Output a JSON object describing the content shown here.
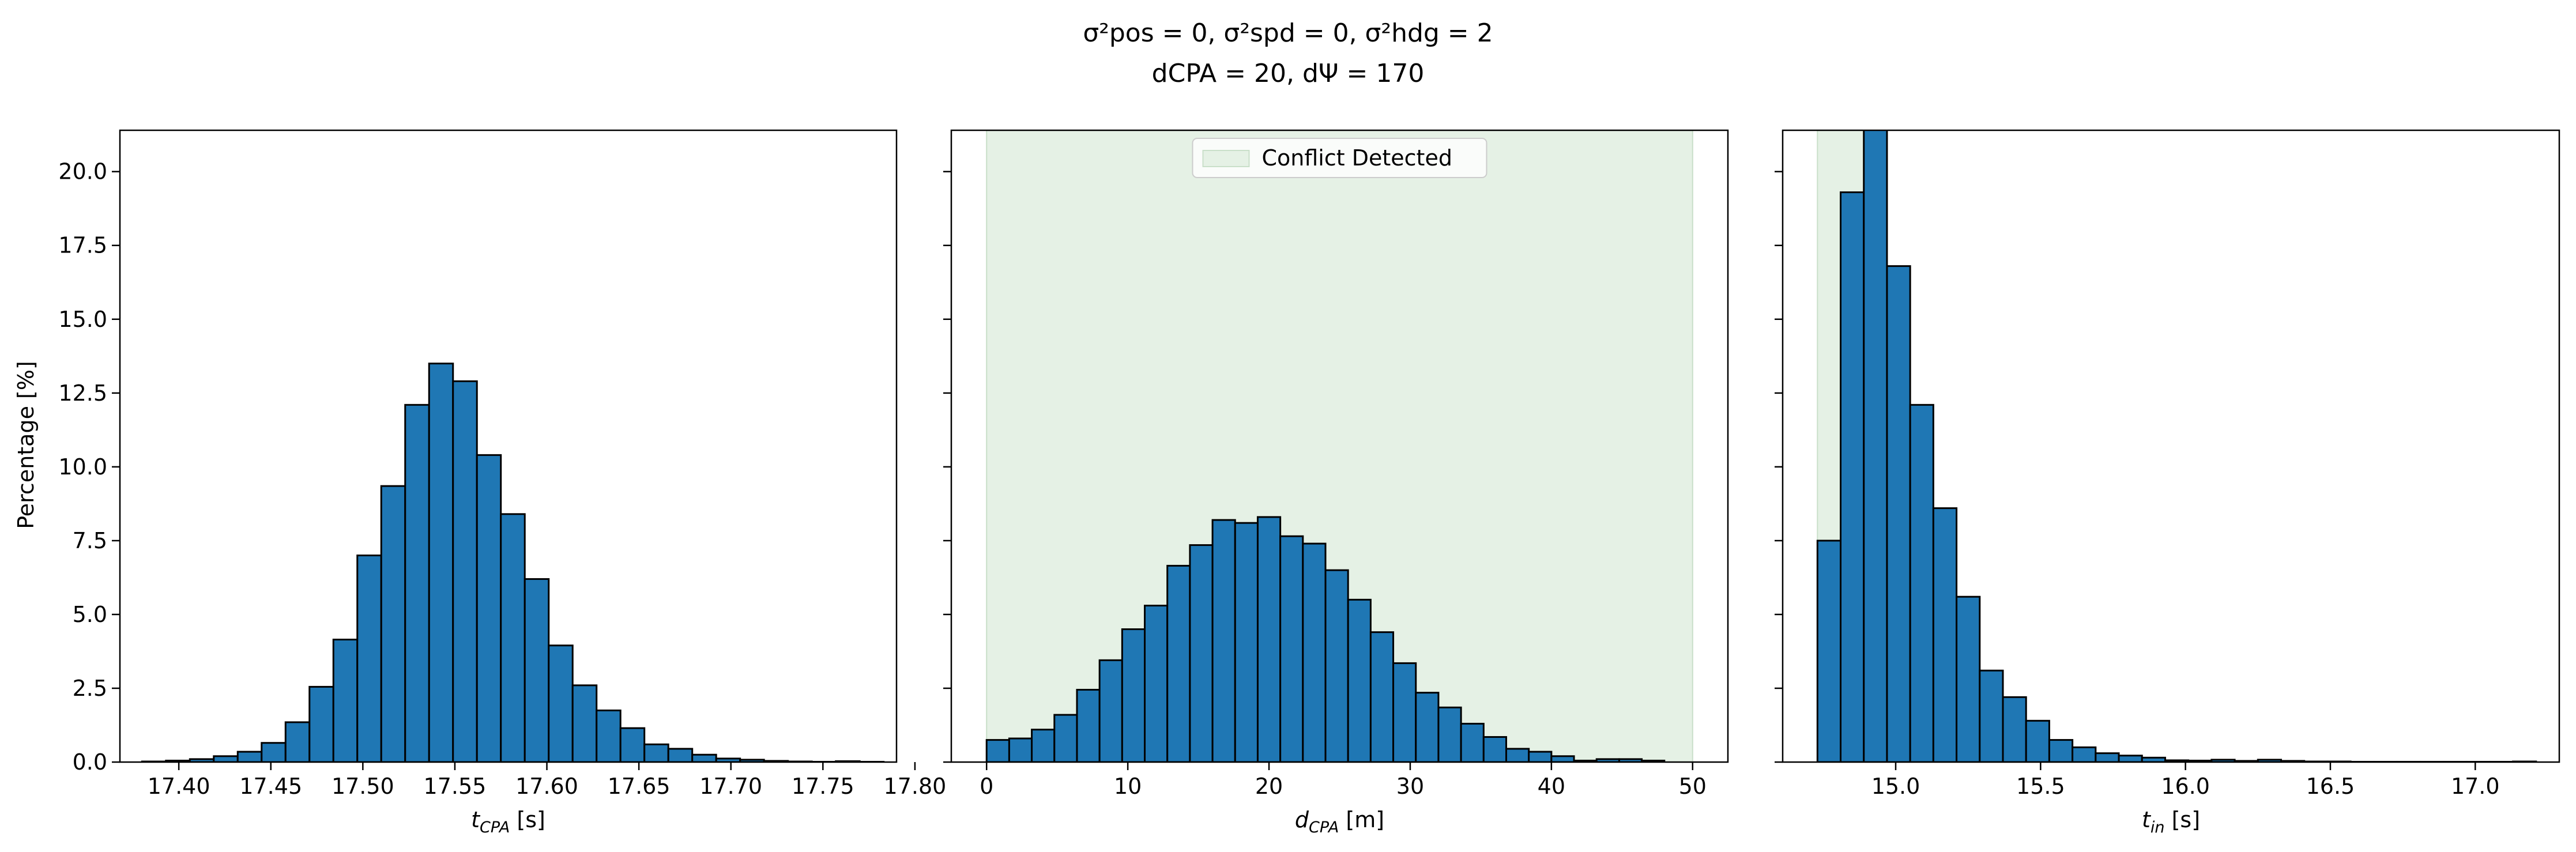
{
  "suptitle": {
    "line1": "σ²pos = 0, σ²spd = 0, σ²hdg = 2",
    "line2": "dCPA = 20, dΨ = 170"
  },
  "shared_ylabel": "Percentage [%]",
  "colors": {
    "bar_fill": "#1f77b4",
    "bar_edge": "#000000",
    "conflict_fill": "#e5f1e5",
    "conflict_edge": "#c9dfc9"
  },
  "chart_data": [
    {
      "type": "bar",
      "subtype": "histogram",
      "xlabel": "t_CPA [s]",
      "xlabel_main": "t",
      "xlabel_sub": "CPA",
      "xlabel_unit": " [s]",
      "ylabel": "Percentage [%]",
      "xlim": [
        17.368,
        17.79
      ],
      "ylim": [
        0,
        21.4
      ],
      "xticks": [
        17.4,
        17.45,
        17.5,
        17.55,
        17.6,
        17.65,
        17.7,
        17.75,
        17.8
      ],
      "xtick_labels": [
        "17.40",
        "17.45",
        "17.50",
        "17.55",
        "17.60",
        "17.65",
        "17.70",
        "17.75",
        "17.80"
      ],
      "yticks": [
        0.0,
        2.5,
        5.0,
        7.5,
        10.0,
        12.5,
        15.0,
        17.5,
        20.0
      ],
      "ytick_labels": [
        "0.0",
        "2.5",
        "5.0",
        "7.5",
        "10.0",
        "12.5",
        "15.0",
        "17.5",
        "20.0"
      ],
      "bin_edges": [
        17.38,
        17.393,
        17.406,
        17.419,
        17.432,
        17.445,
        17.458,
        17.471,
        17.484,
        17.497,
        17.51,
        17.523,
        17.536,
        17.549,
        17.562,
        17.575,
        17.588,
        17.601,
        17.614,
        17.627,
        17.64,
        17.653,
        17.666,
        17.679,
        17.692,
        17.705,
        17.718,
        17.731,
        17.744,
        17.757,
        17.77,
        17.783
      ],
      "values": [
        0.02,
        0.05,
        0.1,
        0.2,
        0.35,
        0.65,
        1.35,
        2.55,
        4.15,
        7.0,
        9.35,
        12.1,
        13.5,
        12.9,
        10.4,
        8.4,
        6.2,
        3.95,
        2.6,
        1.75,
        1.15,
        0.6,
        0.45,
        0.25,
        0.12,
        0.08,
        0.04,
        0.02,
        0.01,
        0.03,
        0.01
      ],
      "conflict_region": null
    },
    {
      "type": "bar",
      "subtype": "histogram",
      "xlabel": "d_CPA [m]",
      "xlabel_main": "d",
      "xlabel_sub": "CPA",
      "xlabel_unit": " [m]",
      "ylabel": "Percentage [%]",
      "xlim": [
        -2.5,
        52.5
      ],
      "ylim": [
        0,
        21.4
      ],
      "xticks": [
        0,
        10,
        20,
        30,
        40,
        50
      ],
      "xtick_labels": [
        "0",
        "10",
        "20",
        "30",
        "40",
        "50"
      ],
      "yticks": [
        0.0,
        2.5,
        5.0,
        7.5,
        10.0,
        12.5,
        15.0,
        17.5,
        20.0
      ],
      "bin_edges": [
        0,
        1.6,
        3.2,
        4.8,
        6.4,
        8.0,
        9.6,
        11.2,
        12.8,
        14.4,
        16.0,
        17.6,
        19.2,
        20.8,
        22.4,
        24.0,
        25.6,
        27.2,
        28.8,
        30.4,
        32.0,
        33.6,
        35.2,
        36.8,
        38.4,
        40.0,
        41.6,
        43.2,
        44.8,
        46.4,
        48.0
      ],
      "values": [
        0.75,
        0.8,
        1.1,
        1.6,
        2.45,
        3.45,
        4.5,
        5.3,
        6.65,
        7.35,
        8.2,
        8.1,
        8.3,
        7.65,
        7.4,
        6.5,
        5.5,
        4.4,
        3.35,
        2.35,
        1.85,
        1.3,
        0.85,
        0.45,
        0.35,
        0.2,
        0.05,
        0.1,
        0.1,
        0.05
      ],
      "conflict_region": [
        0,
        50
      ],
      "legend": {
        "label": "Conflict Detected",
        "placement": "upper center"
      }
    },
    {
      "type": "bar",
      "subtype": "histogram",
      "xlabel": "t_in [s]",
      "xlabel_main": "t",
      "xlabel_sub": "in",
      "xlabel_unit": " [s]",
      "ylabel": "Percentage [%]",
      "xlim": [
        14.61,
        17.29
      ],
      "ylim": [
        0,
        21.4
      ],
      "xticks": [
        15.0,
        15.5,
        16.0,
        16.5,
        17.0
      ],
      "xtick_labels": [
        "15.0",
        "15.5",
        "16.0",
        "16.5",
        "17.0"
      ],
      "yticks": [
        0.0,
        2.5,
        5.0,
        7.5,
        10.0,
        12.5,
        15.0,
        17.5,
        20.0
      ],
      "bin_edges": [
        14.73,
        14.81,
        14.89,
        14.97,
        15.05,
        15.13,
        15.21,
        15.29,
        15.37,
        15.45,
        15.53,
        15.61,
        15.69,
        15.77,
        15.85,
        15.93,
        16.01,
        16.09,
        16.17,
        16.25,
        16.33,
        16.41,
        16.49,
        16.57,
        16.65,
        16.73,
        16.81,
        16.89,
        16.97,
        17.05,
        17.13,
        17.21
      ],
      "values": [
        7.5,
        19.3,
        21.5,
        16.8,
        12.1,
        8.6,
        5.6,
        3.1,
        2.2,
        1.4,
        0.75,
        0.5,
        0.3,
        0.22,
        0.15,
        0.06,
        0.05,
        0.08,
        0.04,
        0.08,
        0.04,
        0.02,
        0.02,
        0.01,
        0.01,
        0.01,
        0.01,
        0.01,
        0.01,
        0.01,
        0.02
      ],
      "conflict_region": [
        14.73,
        14.97
      ]
    }
  ]
}
